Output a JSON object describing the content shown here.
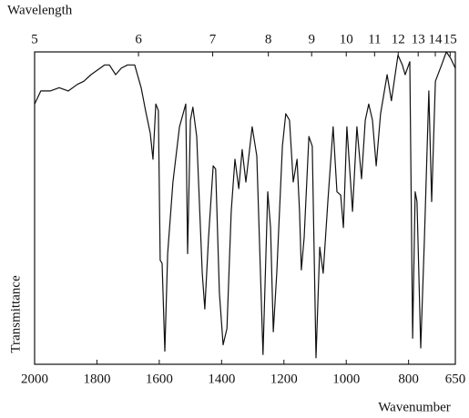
{
  "chart_data": {
    "type": "line",
    "title": "Wavelength",
    "x_label": "Wavenumber",
    "y_label": "Transmittance",
    "xlim": [
      2000,
      650
    ],
    "ylim": [
      0,
      96
    ],
    "xticks": [
      2000,
      1800,
      1600,
      1400,
      1200,
      1000,
      800,
      650
    ],
    "x2ticks": [
      5,
      6,
      7,
      8,
      9,
      10,
      11,
      12,
      13,
      14,
      15
    ],
    "color": "#111111",
    "x": [
      2000,
      1980,
      1950,
      1921,
      1892,
      1863,
      1842,
      1819,
      1790,
      1775,
      1760,
      1740,
      1722,
      1702,
      1679,
      1658,
      1644,
      1629,
      1620,
      1611,
      1603,
      1597,
      1591,
      1582,
      1573,
      1556,
      1535,
      1515,
      1509,
      1500,
      1492,
      1480,
      1462,
      1454,
      1442,
      1427,
      1419,
      1407,
      1395,
      1383,
      1369,
      1357,
      1345,
      1334,
      1322,
      1302,
      1287,
      1267,
      1252,
      1243,
      1234,
      1223,
      1205,
      1194,
      1182,
      1170,
      1158,
      1150,
      1144,
      1135,
      1120,
      1109,
      1097,
      1085,
      1074,
      1059,
      1042,
      1030,
      1018,
      1009,
      998,
      989,
      980,
      966,
      951,
      939,
      928,
      916,
      904,
      890,
      869,
      855,
      834,
      820,
      811,
      796,
      787,
      779,
      773,
      761,
      749,
      735,
      726,
      714,
      694,
      679,
      665,
      650
    ],
    "values": [
      80,
      84,
      84,
      85,
      84,
      86,
      87,
      89,
      91,
      92,
      92,
      89,
      91,
      92,
      92,
      85,
      78,
      71,
      63,
      80,
      78,
      32,
      31,
      4,
      34,
      56,
      73,
      80,
      34,
      75,
      79,
      70,
      28,
      17,
      39,
      61,
      60,
      22,
      6,
      11,
      47,
      63,
      54,
      66,
      56,
      73,
      64,
      3,
      53,
      42,
      10,
      28,
      67,
      77,
      75,
      56,
      63,
      47,
      29,
      39,
      70,
      67,
      2,
      36,
      28,
      50,
      73,
      53,
      52,
      42,
      73,
      60,
      47,
      73,
      57,
      75,
      80,
      75,
      61,
      77,
      89,
      81,
      95,
      92,
      89,
      93,
      8,
      53,
      50,
      5,
      39,
      84,
      50,
      87,
      92,
      96,
      94,
      91
    ]
  }
}
